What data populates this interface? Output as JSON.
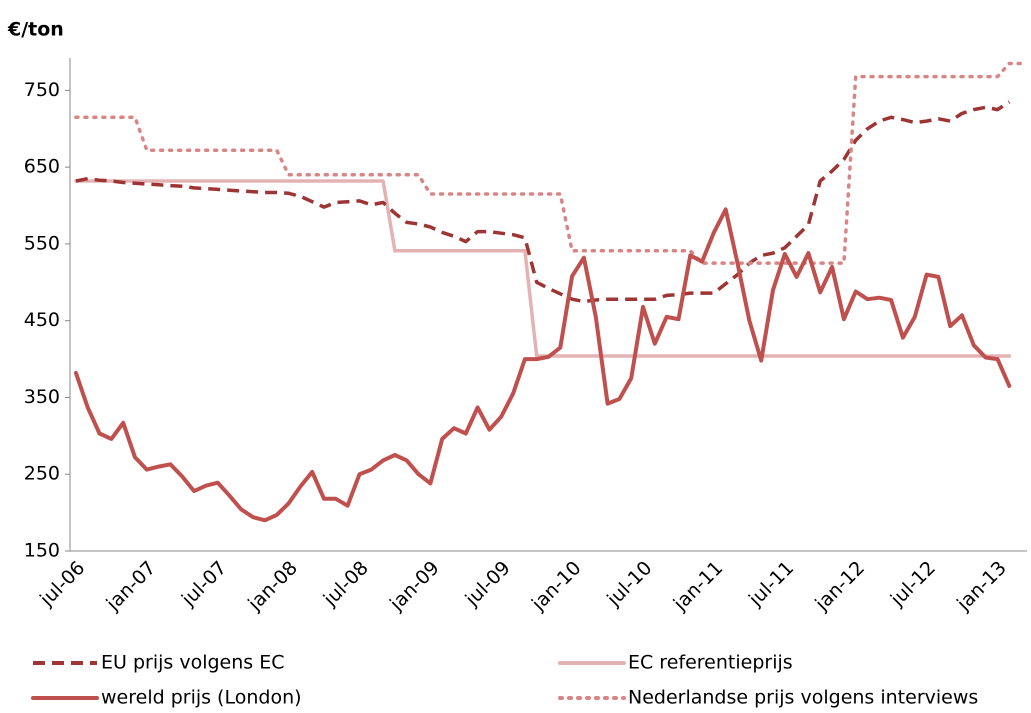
{
  "chart_data": {
    "type": "line",
    "y_label": "€/ton",
    "categories": [
      "jul-06",
      null,
      null,
      null,
      null,
      null,
      "jan-07",
      null,
      null,
      null,
      null,
      null,
      "jul-07",
      null,
      null,
      null,
      null,
      null,
      "jan-08",
      null,
      null,
      null,
      null,
      null,
      "jul-08",
      null,
      null,
      null,
      null,
      null,
      "jan-09",
      null,
      null,
      null,
      null,
      null,
      "jul-09",
      null,
      null,
      null,
      null,
      null,
      "jan-10",
      null,
      null,
      null,
      null,
      null,
      "jul-10",
      null,
      null,
      null,
      null,
      null,
      "jan-11",
      null,
      null,
      null,
      null,
      null,
      "jul-11",
      null,
      null,
      null,
      null,
      null,
      "jan-12",
      null,
      null,
      null,
      null,
      null,
      "jul-12",
      null,
      null,
      null,
      null,
      null,
      "jan-13",
      null,
      null
    ],
    "ylim": [
      150,
      800
    ],
    "yticks": [
      150,
      250,
      350,
      450,
      550,
      650,
      750
    ],
    "grid": false,
    "legend": "bottom",
    "series": [
      {
        "name": "EU prijs volgens EC",
        "color": "#9e3535",
        "dash": "dashed",
        "values": [
          632,
          635,
          633,
          632,
          630,
          629,
          628,
          627,
          626,
          625,
          623,
          622,
          621,
          620,
          619,
          618,
          617,
          617,
          616,
          612,
          605,
          598,
          604,
          605,
          606,
          601,
          604,
          590,
          578,
          576,
          572,
          565,
          560,
          553,
          566,
          566,
          564,
          562,
          558,
          500,
          492,
          485,
          478,
          475,
          477,
          478,
          478,
          478,
          478,
          478,
          483,
          484,
          486,
          486,
          486,
          498,
          510,
          525,
          535,
          538,
          545,
          560,
          575,
          632,
          645,
          660,
          685,
          700,
          710,
          715,
          712,
          708,
          710,
          713,
          710,
          720,
          725,
          728,
          725,
          735,
          null
        ]
      },
      {
        "name": "EC referentieprijs",
        "color": "#e3b3b3",
        "dash": "solid",
        "values": [
          632,
          632,
          632,
          632,
          632,
          632,
          632,
          632,
          632,
          632,
          632,
          632,
          632,
          632,
          632,
          632,
          632,
          632,
          632,
          632,
          632,
          632,
          632,
          632,
          632,
          632,
          632,
          541,
          541,
          541,
          541,
          541,
          541,
          541,
          541,
          541,
          541,
          541,
          541,
          404,
          404,
          404,
          404,
          404,
          404,
          404,
          404,
          404,
          404,
          404,
          404,
          404,
          404,
          404,
          404,
          404,
          404,
          404,
          404,
          404,
          404,
          404,
          404,
          404,
          404,
          404,
          404,
          404,
          404,
          404,
          404,
          404,
          404,
          404,
          404,
          404,
          404,
          404,
          404,
          404,
          null
        ]
      },
      {
        "name": "wereld prijs (London)",
        "color": "#c0504d",
        "dash": "solid",
        "values": [
          382,
          337,
          303,
          296,
          317,
          272,
          256,
          260,
          263,
          247,
          228,
          235,
          239,
          222,
          204,
          194,
          190,
          197,
          212,
          234,
          253,
          218,
          218,
          209,
          250,
          256,
          268,
          275,
          268,
          250,
          238,
          296,
          310,
          303,
          337,
          308,
          325,
          355,
          400,
          400,
          403,
          415,
          508,
          532,
          455,
          342,
          348,
          375,
          468,
          420,
          455,
          452,
          535,
          527,
          565,
          595,
          525,
          450,
          398,
          490,
          537,
          507,
          538,
          487,
          520,
          452,
          488,
          478,
          480,
          477,
          428,
          455,
          510,
          507,
          443,
          457,
          418,
          402,
          400,
          365,
          null
        ]
      },
      {
        "name": "Nederlandse prijs volgens interviews",
        "color": "#d98585",
        "dash": "dotted",
        "values": [
          715,
          715,
          715,
          715,
          715,
          715,
          672,
          672,
          672,
          672,
          672,
          672,
          672,
          672,
          672,
          672,
          672,
          672,
          640,
          640,
          640,
          640,
          640,
          640,
          640,
          640,
          640,
          640,
          640,
          640,
          615,
          615,
          615,
          615,
          615,
          615,
          615,
          615,
          615,
          615,
          615,
          615,
          541,
          541,
          541,
          541,
          541,
          541,
          541,
          541,
          541,
          541,
          541,
          525,
          525,
          525,
          525,
          525,
          525,
          525,
          525,
          525,
          525,
          525,
          525,
          525,
          768,
          768,
          768,
          768,
          768,
          768,
          768,
          768,
          768,
          768,
          768,
          768,
          768,
          785,
          785
        ]
      }
    ]
  }
}
